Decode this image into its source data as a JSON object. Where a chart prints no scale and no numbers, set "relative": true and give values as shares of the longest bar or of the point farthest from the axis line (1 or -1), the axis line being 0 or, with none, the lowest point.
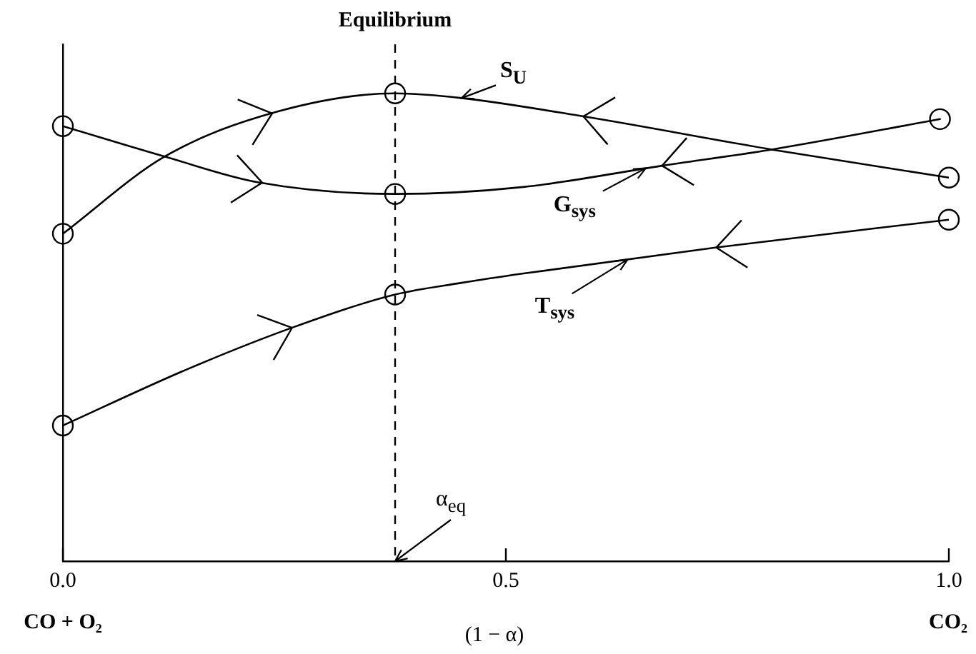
{
  "chart_data": {
    "type": "line",
    "relative": true,
    "xlabel": "(1 − α)",
    "xlim": [
      0,
      1
    ],
    "xticks": [
      {
        "value": 0,
        "label": "0.0"
      },
      0.5,
      {
        "value": 1,
        "label": "1.0"
      }
    ],
    "series": [
      {
        "name": "S$_{U}$",
        "color": "#000000",
        "x": [
          0,
          0.115,
          0.24,
          0.375,
          0.45,
          0.59,
          0.8,
          1
        ],
        "values": [
          0.7,
          0.865,
          0.96,
          1,
          0.99,
          0.95,
          0.88,
          0.82
        ]
      },
      {
        "name": "G$_{sys}$",
        "color": "#000000",
        "x": [
          0,
          0.115,
          0.22,
          0.375,
          0.52,
          0.675,
          0.8,
          0.99
        ],
        "values": [
          0.93,
          0.865,
          0.81,
          0.785,
          0.8,
          0.845,
          0.88,
          0.945
        ]
      },
      {
        "name": "T$_{sys}$",
        "color": "#000000",
        "x": [
          0,
          0.14,
          0.26,
          0.375,
          0.45,
          0.52,
          0.735,
          1
        ],
        "values": [
          0.29,
          0.41,
          0.5,
          0.57,
          0.595,
          0.615,
          0.67,
          0.73
        ]
      },
      {
        "type": "scatter",
        "color": "#000000",
        "marker": "circle",
        "x": [
          0,
          0.375,
          1,
          0,
          0.375,
          0.99,
          0,
          0.375,
          1
        ],
        "values": [
          0.7,
          1,
          0.82,
          0.93,
          0.785,
          0.945,
          0.29,
          0.57,
          0.73
        ]
      }
    ],
    "marker": "none",
    "grid": false,
    "legend": false,
    "ref_lines": [
      {
        "axis": "x",
        "value": 0.375,
        "label": "Equilibrium",
        "line_style": "dashed",
        "color": "#000000"
      }
    ],
    "annotations": [
      {
        "text": "α$_{eq}$",
        "x": 0.375,
        "y": 0
      },
      "CO + O₂",
      "CO₂"
    ]
  }
}
